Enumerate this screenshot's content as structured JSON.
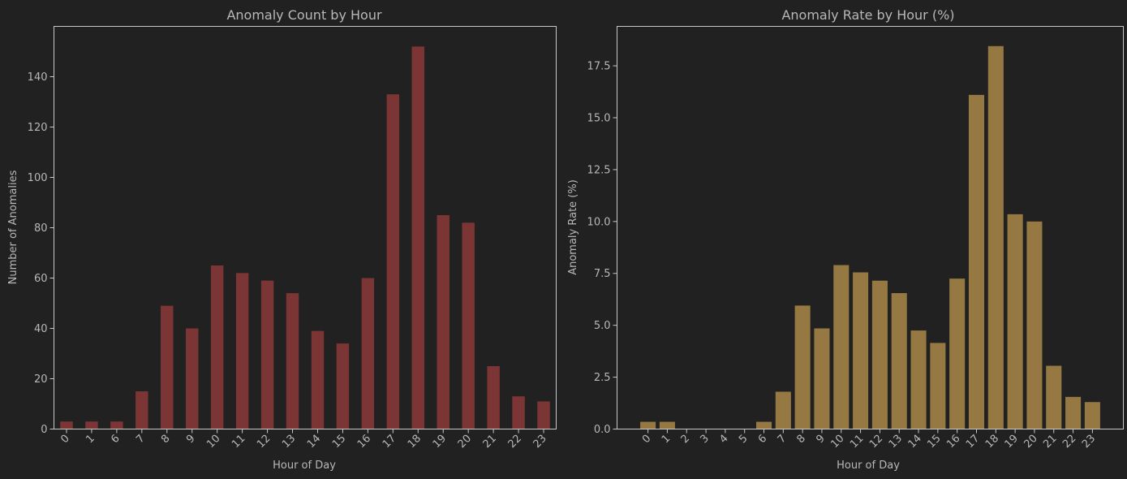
{
  "background": "#212121",
  "text_color": "#b8b8b8",
  "chart_data": [
    {
      "type": "bar",
      "title": "Anomaly Count by Hour",
      "xlabel": "Hour of Day",
      "ylabel": "Number of Anomalies",
      "categories": [
        "0",
        "1",
        "6",
        "7",
        "8",
        "9",
        "10",
        "11",
        "12",
        "13",
        "14",
        "15",
        "16",
        "17",
        "18",
        "19",
        "20",
        "21",
        "22",
        "23"
      ],
      "values": [
        3,
        3,
        3,
        15,
        49,
        40,
        65,
        62,
        59,
        54,
        39,
        34,
        60,
        133,
        152,
        85,
        82,
        25,
        13,
        11
      ],
      "ylim": [
        0,
        160
      ],
      "yticks": [
        0,
        20,
        40,
        60,
        80,
        100,
        120,
        140
      ],
      "ytick_labels": [
        "0",
        "20",
        "40",
        "60",
        "80",
        "100",
        "120",
        "140"
      ],
      "color": "#7b3535",
      "grid": false,
      "legend": false
    },
    {
      "type": "bar",
      "title": "Anomaly Rate by Hour (%)",
      "xlabel": "Hour of Day",
      "ylabel": "Anomaly Rate (%)",
      "categories": [
        "0",
        "1",
        "2",
        "3",
        "4",
        "5",
        "6",
        "7",
        "8",
        "9",
        "10",
        "11",
        "12",
        "13",
        "14",
        "15",
        "16",
        "17",
        "18",
        "19",
        "20",
        "21",
        "22",
        "23"
      ],
      "values": [
        0.35,
        0.35,
        0,
        0,
        0,
        0,
        0.35,
        1.8,
        5.95,
        4.85,
        7.9,
        7.55,
        7.15,
        6.55,
        4.75,
        4.15,
        7.25,
        16.1,
        18.45,
        10.35,
        10.0,
        3.05,
        1.55,
        1.3
      ],
      "ylim": [
        0,
        19.4
      ],
      "yticks": [
        0,
        2.5,
        5,
        7.5,
        10,
        12.5,
        15,
        17.5
      ],
      "ytick_labels": [
        "0.0",
        "2.5",
        "5.0",
        "7.5",
        "10.0",
        "12.5",
        "15.0",
        "17.5"
      ],
      "color": "#967942",
      "grid": false,
      "legend": false
    }
  ]
}
